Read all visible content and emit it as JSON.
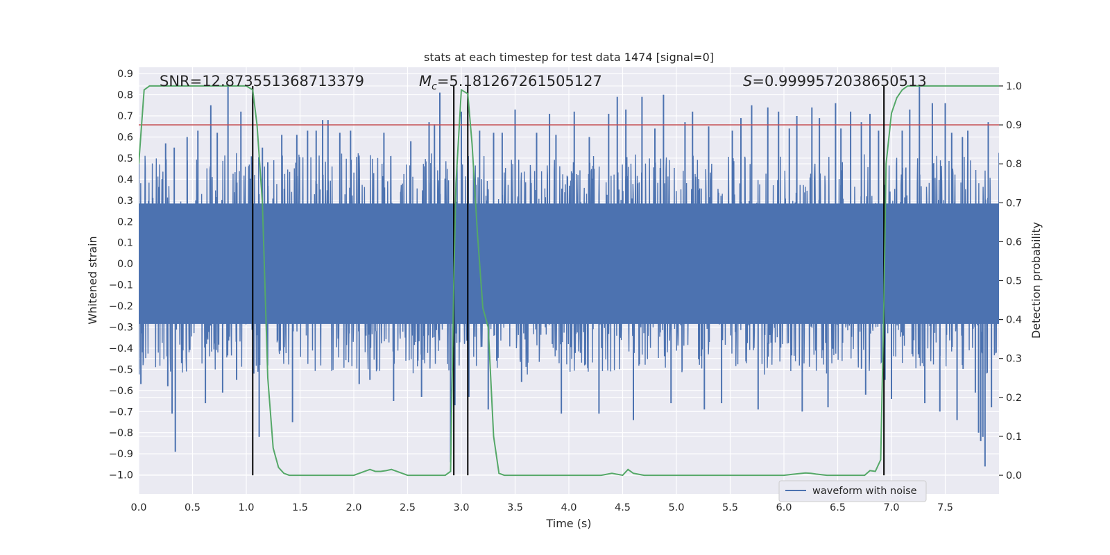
{
  "chart_data": {
    "type": "line",
    "title": "stats at each timestep for test data 1474 [signal=0]",
    "xlabel": "Time (s)",
    "ylabel_left": "Whitened strain",
    "ylabel_right": "Detection probability",
    "xlim": [
      0.0,
      8.0
    ],
    "ylim_left": [
      -1.09,
      0.93
    ],
    "ylim_right": [
      -0.048,
      1.048
    ],
    "x_ticks": [
      0.0,
      0.5,
      1.0,
      1.5,
      2.0,
      2.5,
      3.0,
      3.5,
      4.0,
      4.5,
      5.0,
      5.5,
      6.0,
      6.5,
      7.0,
      7.5
    ],
    "x_tick_labels": [
      "0.0",
      "0.5",
      "1.0",
      "1.5",
      "2.0",
      "2.5",
      "3.0",
      "3.5",
      "4.0",
      "4.5",
      "5.0",
      "5.5",
      "6.0",
      "6.5",
      "7.0",
      "7.5"
    ],
    "y_left_ticks": [
      0.9,
      0.8,
      0.7,
      0.6,
      0.5,
      0.4,
      0.3,
      0.2,
      0.1,
      0.0,
      -0.1,
      -0.2,
      -0.3,
      -0.4,
      -0.5,
      -0.6,
      -0.7,
      -0.8,
      -0.9,
      -1.0
    ],
    "y_left_tick_labels": [
      "0.9",
      "0.8",
      "0.7",
      "0.6",
      "0.5",
      "0.4",
      "0.3",
      "0.2",
      "0.1",
      "0.0",
      "−0.1",
      "−0.2",
      "−0.3",
      "−0.4",
      "−0.5",
      "−0.6",
      "−0.7",
      "−0.8",
      "−0.9",
      "−1.0"
    ],
    "y_right_ticks": [
      1.0,
      0.9,
      0.8,
      0.7,
      0.6,
      0.5,
      0.4,
      0.3,
      0.2,
      0.1,
      0.0
    ],
    "y_right_tick_labels": [
      "1.0",
      "0.9",
      "0.8",
      "0.7",
      "0.6",
      "0.5",
      "0.4",
      "0.3",
      "0.2",
      "0.1",
      "0.0"
    ],
    "grid": true,
    "legend": {
      "location": "lower right",
      "entries": [
        "waveform with noise"
      ]
    },
    "annotations": {
      "snr": "SNR=12.873551368713379",
      "mc_symbol": "M",
      "mc_subscript": "c",
      "mc_value": "=5.181267261505127",
      "s_symbol": "S",
      "s_value": "=0.9999572038650513"
    },
    "threshold_line": {
      "y_right": 0.9,
      "color": "#c44e52"
    },
    "vertical_lines_x": [
      1.06,
      2.93,
      3.06,
      6.93
    ],
    "detection_probability": {
      "color": "#55a868",
      "x": [
        0.0,
        0.05,
        0.1,
        0.2,
        0.3,
        0.4,
        0.5,
        0.6,
        0.7,
        0.8,
        0.9,
        1.0,
        1.06,
        1.1,
        1.15,
        1.2,
        1.25,
        1.3,
        1.35,
        1.4,
        1.5,
        1.6,
        1.7,
        1.8,
        1.9,
        2.0,
        2.05,
        2.1,
        2.15,
        2.2,
        2.25,
        2.3,
        2.35,
        2.4,
        2.5,
        2.6,
        2.7,
        2.8,
        2.85,
        2.9,
        2.93,
        2.95,
        3.0,
        3.06,
        3.1,
        3.15,
        3.2,
        3.25,
        3.3,
        3.35,
        3.4,
        3.5,
        3.6,
        3.8,
        4.0,
        4.2,
        4.3,
        4.4,
        4.5,
        4.55,
        4.6,
        4.7,
        4.8,
        5.0,
        5.2,
        5.4,
        5.6,
        5.8,
        6.0,
        6.1,
        6.2,
        6.25,
        6.3,
        6.4,
        6.5,
        6.6,
        6.65,
        6.7,
        6.75,
        6.8,
        6.85,
        6.9,
        6.93,
        6.95,
        7.0,
        7.05,
        7.1,
        7.15,
        7.2,
        7.3,
        7.4,
        7.5,
        7.6,
        7.7,
        7.8,
        7.9,
        8.0
      ],
      "y": [
        0.8,
        0.99,
        1.0,
        1.0,
        1.0,
        1.0,
        1.0,
        1.0,
        1.0,
        1.0,
        1.0,
        1.0,
        0.99,
        0.9,
        0.7,
        0.25,
        0.07,
        0.02,
        0.005,
        0.0,
        0.0,
        0.0,
        0.0,
        0.0,
        0.0,
        0.0,
        0.005,
        0.01,
        0.015,
        0.01,
        0.01,
        0.012,
        0.015,
        0.01,
        0.0,
        0.0,
        0.0,
        0.0,
        0.0,
        0.01,
        0.5,
        0.75,
        0.99,
        0.98,
        0.85,
        0.62,
        0.43,
        0.38,
        0.1,
        0.005,
        0.0,
        0.0,
        0.0,
        0.0,
        0.0,
        0.0,
        0.0,
        0.005,
        0.0,
        0.015,
        0.005,
        0.0,
        0.0,
        0.0,
        0.0,
        0.0,
        0.0,
        0.0,
        0.0,
        0.003,
        0.006,
        0.005,
        0.003,
        0.0,
        0.0,
        0.0,
        0.0,
        0.0,
        0.0,
        0.012,
        0.01,
        0.04,
        0.45,
        0.8,
        0.93,
        0.97,
        0.99,
        1.0,
        1.0,
        1.0,
        1.0,
        1.0,
        1.0,
        1.0,
        1.0,
        1.0,
        1.0
      ]
    },
    "waveform": {
      "name": "waveform with noise",
      "color": "#4c72b0",
      "x_range": [
        0.0,
        8.0
      ],
      "typical_band": [
        -0.5,
        0.5
      ],
      "spikes": [
        [
          0.0,
          0.5
        ],
        [
          0.02,
          -0.57
        ],
        [
          0.25,
          0.57
        ],
        [
          0.27,
          -0.58
        ],
        [
          0.31,
          -0.71
        ],
        [
          0.33,
          0.55
        ],
        [
          0.34,
          -0.89
        ],
        [
          0.45,
          0.6
        ],
        [
          0.55,
          0.63
        ],
        [
          0.62,
          -0.66
        ],
        [
          0.67,
          0.75
        ],
        [
          0.73,
          0.62
        ],
        [
          0.78,
          -0.61
        ],
        [
          0.83,
          0.85
        ],
        [
          0.91,
          -0.55
        ],
        [
          0.95,
          0.72
        ],
        [
          1.07,
          -0.52
        ],
        [
          1.12,
          -0.82
        ],
        [
          1.15,
          0.55
        ],
        [
          1.2,
          0.48
        ],
        [
          1.33,
          0.61
        ],
        [
          1.43,
          -0.75
        ],
        [
          1.47,
          0.61
        ],
        [
          1.57,
          0.63
        ],
        [
          1.65,
          0.63
        ],
        [
          1.71,
          0.68
        ],
        [
          1.76,
          0.68
        ],
        [
          1.87,
          0.62
        ],
        [
          1.97,
          0.63
        ],
        [
          2.05,
          -0.57
        ],
        [
          2.15,
          -0.55
        ],
        [
          2.28,
          0.62
        ],
        [
          2.37,
          -0.65
        ],
        [
          2.53,
          0.58
        ],
        [
          2.63,
          -0.63
        ],
        [
          2.7,
          0.67
        ],
        [
          2.75,
          0.66
        ],
        [
          2.8,
          0.81
        ],
        [
          2.9,
          -0.94
        ],
        [
          2.94,
          -0.67
        ],
        [
          3.0,
          0.72
        ],
        [
          3.07,
          -0.63
        ],
        [
          3.17,
          0.63
        ],
        [
          3.25,
          -0.69
        ],
        [
          3.3,
          0.62
        ],
        [
          3.38,
          0.62
        ],
        [
          3.5,
          0.73
        ],
        [
          3.56,
          -0.56
        ],
        [
          3.7,
          0.62
        ],
        [
          3.82,
          0.71
        ],
        [
          3.88,
          0.61
        ],
        [
          3.93,
          -0.71
        ],
        [
          4.05,
          0.72
        ],
        [
          4.19,
          0.6
        ],
        [
          4.28,
          -0.71
        ],
        [
          4.37,
          0.71
        ],
        [
          4.45,
          0.79
        ],
        [
          4.53,
          0.73
        ],
        [
          4.6,
          -0.74
        ],
        [
          4.68,
          0.79
        ],
        [
          4.8,
          0.64
        ],
        [
          4.88,
          0.8
        ],
        [
          4.95,
          -0.66
        ],
        [
          5.08,
          0.67
        ],
        [
          5.15,
          0.72
        ],
        [
          5.26,
          -0.69
        ],
        [
          5.3,
          0.65
        ],
        [
          5.42,
          -0.66
        ],
        [
          5.52,
          0.63
        ],
        [
          5.6,
          0.69
        ],
        [
          5.7,
          0.75
        ],
        [
          5.76,
          -0.69
        ],
        [
          5.85,
          0.74
        ],
        [
          5.95,
          0.72
        ],
        [
          6.05,
          0.64
        ],
        [
          6.12,
          0.7
        ],
        [
          6.17,
          -0.7
        ],
        [
          6.26,
          0.74
        ],
        [
          6.33,
          0.69
        ],
        [
          6.41,
          -0.68
        ],
        [
          6.48,
          0.76
        ],
        [
          6.53,
          0.64
        ],
        [
          6.62,
          0.72
        ],
        [
          6.72,
          0.67
        ],
        [
          6.76,
          -0.62
        ],
        [
          6.8,
          0.71
        ],
        [
          6.88,
          0.63
        ],
        [
          6.94,
          -0.55
        ],
        [
          7.0,
          -0.64
        ],
        [
          7.1,
          0.63
        ],
        [
          7.17,
          0.73
        ],
        [
          7.26,
          0.84
        ],
        [
          7.31,
          -0.66
        ],
        [
          7.38,
          0.76
        ],
        [
          7.45,
          -0.7
        ],
        [
          7.5,
          0.76
        ],
        [
          7.56,
          0.62
        ],
        [
          7.61,
          -0.74
        ],
        [
          7.66,
          0.6
        ],
        [
          7.71,
          0.63
        ],
        [
          7.78,
          -0.61
        ],
        [
          7.81,
          -0.8
        ],
        [
          7.83,
          -0.84
        ],
        [
          7.85,
          -0.82
        ],
        [
          7.87,
          -0.96
        ],
        [
          7.9,
          0.67
        ],
        [
          7.93,
          -0.68
        ]
      ]
    }
  }
}
